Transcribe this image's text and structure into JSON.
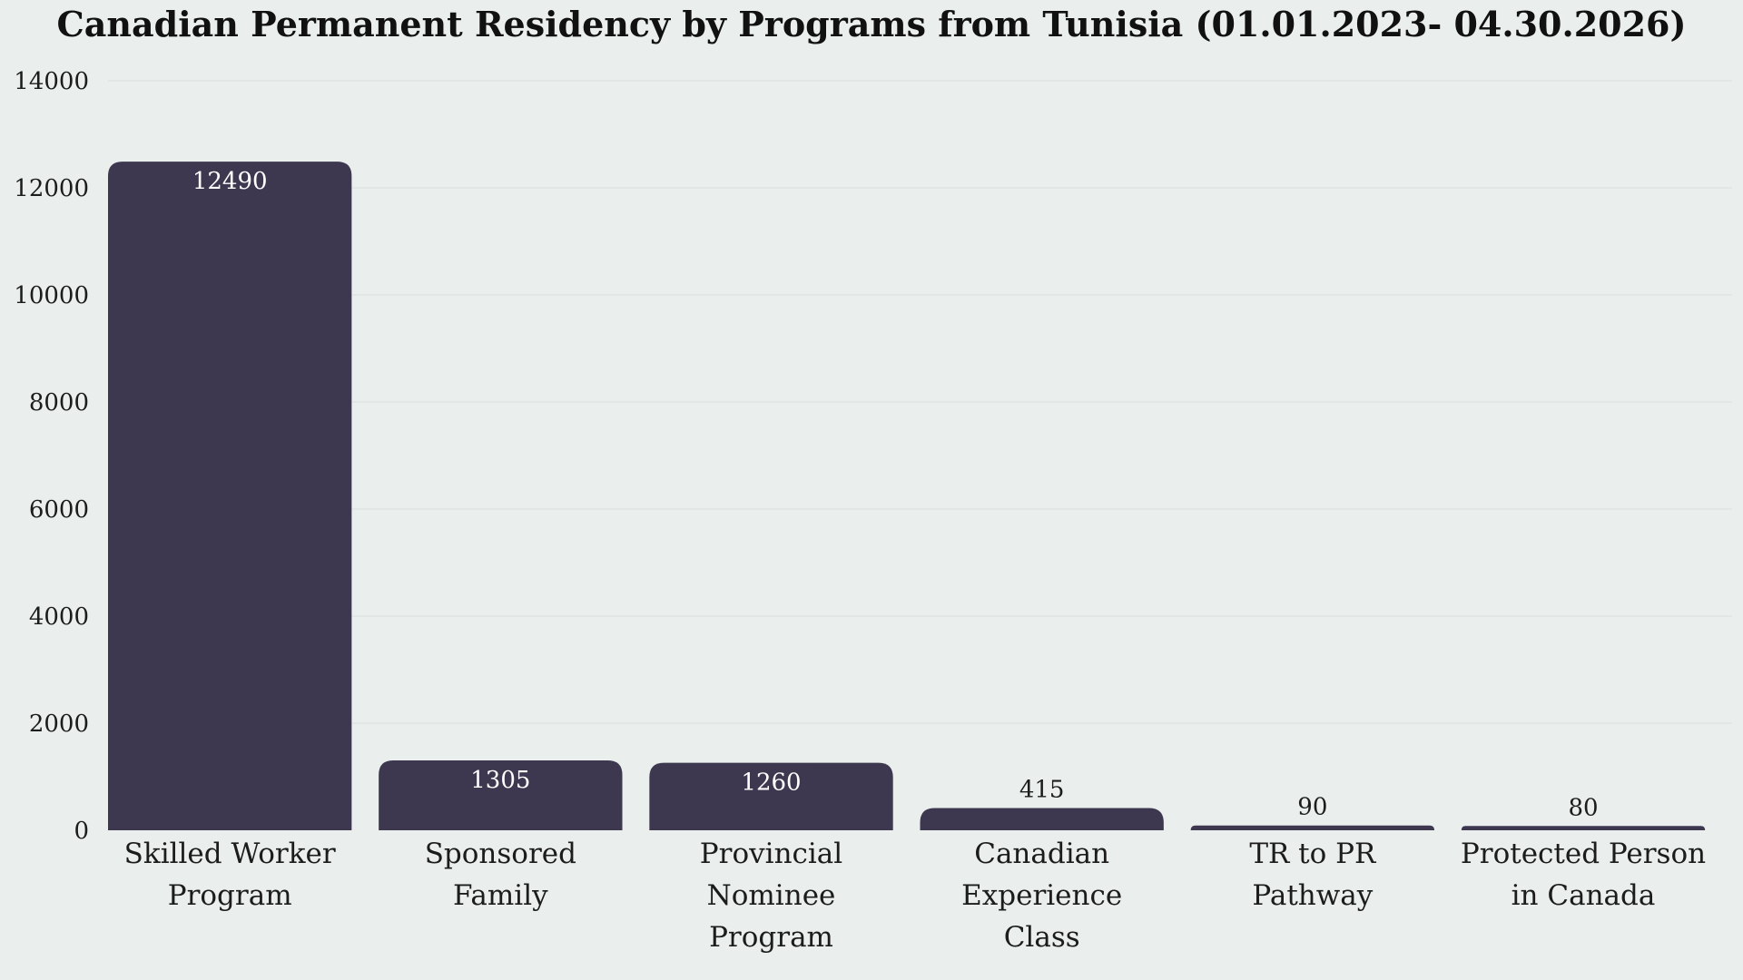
{
  "chart_data": {
    "type": "bar",
    "title": "Canadian Permanent Residency by Programs from Tunisia (01.01.2023- 04.30.2026)",
    "xlabel": "",
    "ylabel": "",
    "categories": [
      "Skilled Worker Program",
      "Sponsored Family",
      "Provincial Nominee Program",
      "Canadian Experience Class",
      "TR to PR Pathway",
      "Protected Person in Canada"
    ],
    "category_lines": [
      [
        "Skilled Worker",
        "Program"
      ],
      [
        "Sponsored",
        "Family"
      ],
      [
        "Provincial",
        "Nominee",
        "Program"
      ],
      [
        "Canadian",
        "Experience",
        "Class"
      ],
      [
        "TR to PR",
        "Pathway"
      ],
      [
        "Protected Person",
        "in Canada"
      ]
    ],
    "values": [
      12490,
      1305,
      1260,
      415,
      90,
      80
    ],
    "data_labels": [
      "12490",
      "1305",
      "1260",
      "415",
      "90",
      "80"
    ],
    "ylim": [
      0,
      14000
    ],
    "yticks": [
      0,
      2000,
      4000,
      6000,
      8000,
      10000,
      12000,
      14000
    ],
    "ytick_labels": [
      "0",
      "2000",
      "4000",
      "6000",
      "8000",
      "10000",
      "12000",
      "14000"
    ],
    "grid": true,
    "legend": "none",
    "colors": {
      "bar": "#3d384f",
      "background": "#eaeeed",
      "grid": "#d9dedd",
      "label_inside": "#ffffff",
      "label_outside": "#1c1c1c"
    }
  }
}
